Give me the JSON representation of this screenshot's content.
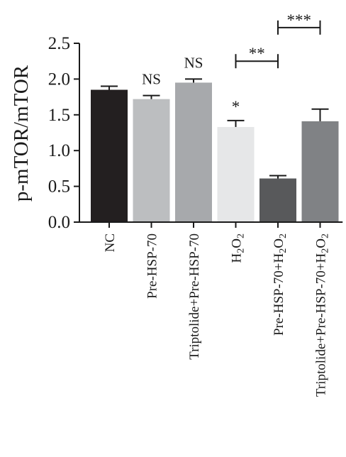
{
  "chart_data": {
    "type": "bar",
    "ylabel": "p-mTOR/mTOR",
    "ylim": [
      0,
      2.5
    ],
    "yticks": [
      "0.0",
      "0.5",
      "1.0",
      "1.5",
      "2.0",
      "2.5"
    ],
    "grid": false,
    "categories": [
      {
        "label": "NC",
        "sub": []
      },
      {
        "label": "Pre-HSP-70",
        "sub": []
      },
      {
        "label": "Triptolide+Pre-HSP-70",
        "sub": []
      },
      {
        "label": "",
        "sub": [
          "H",
          "2",
          "O",
          "2"
        ]
      },
      {
        "label": "Pre-HSP-70+",
        "sub": [
          "H",
          "2",
          "O",
          "2"
        ]
      },
      {
        "label": "Triptolide+Pre-HSP-70+",
        "sub": [
          "H",
          "2",
          "O",
          "2"
        ]
      }
    ],
    "values": [
      1.85,
      1.72,
      1.95,
      1.33,
      0.61,
      1.41
    ],
    "errors": [
      0.05,
      0.05,
      0.05,
      0.09,
      0.04,
      0.17
    ],
    "colors": [
      "#231f20",
      "#bcbec0",
      "#a7a9ac",
      "#e6e7e8",
      "#58595b",
      "#808285"
    ],
    "annotations": {
      "bar_labels": [
        "",
        "NS",
        "NS",
        "*",
        "",
        ""
      ],
      "brackets": [
        {
          "from": 3,
          "to": 4,
          "label": "**",
          "y": 2.25
        },
        {
          "from": 4,
          "to": 5,
          "label": "***",
          "y": 2.72
        }
      ]
    }
  }
}
